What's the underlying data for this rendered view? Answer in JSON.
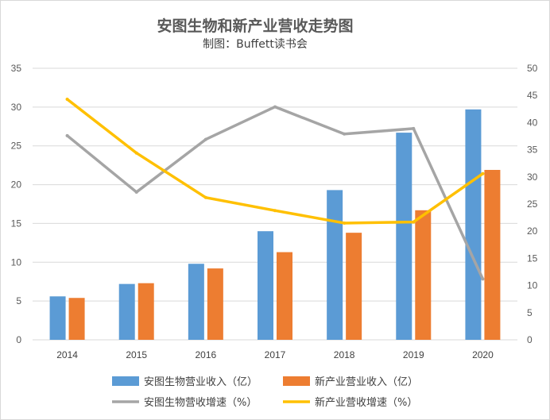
{
  "chart_data": {
    "type": "bar",
    "title": "安图生物和新产业营收走势图",
    "subtitle": "制图：Buffett读书会",
    "categories": [
      "2014",
      "2015",
      "2016",
      "2017",
      "2018",
      "2019",
      "2020"
    ],
    "left_axis": {
      "ylim": [
        0,
        35
      ],
      "ticks": [
        "0",
        "5",
        "10",
        "15",
        "20",
        "25",
        "30",
        "35"
      ]
    },
    "right_axis": {
      "ylim": [
        0,
        50
      ],
      "ticks": [
        "0",
        "5",
        "10",
        "15",
        "20",
        "25",
        "30",
        "35",
        "40",
        "45",
        "50"
      ]
    },
    "grid": true,
    "legend_position": "bottom",
    "series": [
      {
        "name": "安图生物营业收入（亿）",
        "type": "bar",
        "axis": "left",
        "color": "#5b9bd5",
        "values": [
          5.6,
          7.2,
          9.8,
          14.0,
          19.3,
          26.7,
          29.7
        ]
      },
      {
        "name": "新产业营业收入（亿）",
        "type": "bar",
        "axis": "left",
        "color": "#ed7d31",
        "values": [
          5.4,
          7.3,
          9.2,
          11.3,
          13.8,
          16.7,
          21.9
        ]
      },
      {
        "name": "安图生物营收增速（%）",
        "type": "line",
        "axis": "right",
        "color": "#a5a5a5",
        "values": [
          37.6,
          27.2,
          36.9,
          42.9,
          37.9,
          38.9,
          11.2
        ]
      },
      {
        "name": "新产业营收增速（%）",
        "type": "line",
        "axis": "right",
        "color": "#ffc000",
        "values": [
          44.3,
          34.4,
          26.2,
          23.8,
          21.5,
          21.7,
          30.6
        ]
      }
    ]
  }
}
